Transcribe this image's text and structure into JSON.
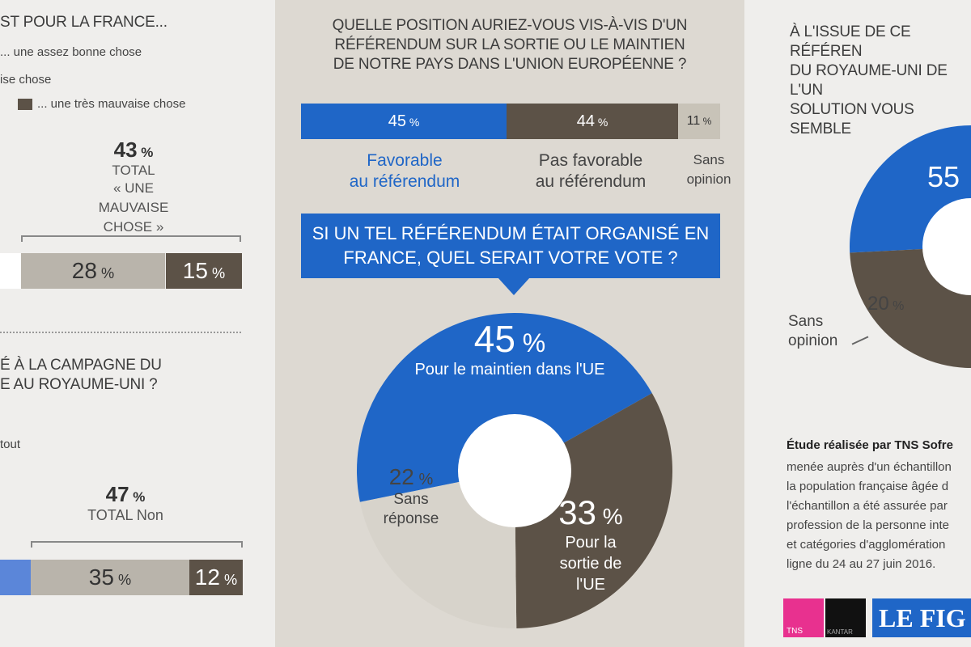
{
  "left_top": {
    "title_fragment": "ST POUR LA FRANCE...",
    "legend": [
      "... une assez bonne chose",
      "ise chose",
      "... une très mauvaise chose"
    ],
    "total_pct": "43",
    "total_label": "TOTAL",
    "total_sublabel": "« UNE MAUVAISE CHOSE »",
    "bar": [
      {
        "label": "28",
        "value": 28
      },
      {
        "label": "15",
        "value": 15
      }
    ]
  },
  "left_bottom": {
    "title_lines": [
      "É À LA CAMPAGNE DU",
      "E AU ROYAUME-UNI ?"
    ],
    "legend_fragment": "tout",
    "total_pct": "47",
    "total_label": "TOTAL Non",
    "bar": [
      {
        "label": "35",
        "value": 35
      },
      {
        "label": "12",
        "value": 12
      }
    ]
  },
  "center": {
    "question_lines": [
      "QUELLE POSITION AURIEZ-VOUS VIS-À-VIS D'UN",
      "RÉFÉRENDUM SUR LA SORTIE OU LE MAINTIEN",
      "DE NOTRE PAYS DANS L'UNION EUROPÉENNE ?"
    ],
    "bar": [
      {
        "label": "45",
        "value": 45,
        "caption": [
          "Favorable",
          "au référendum"
        ]
      },
      {
        "label": "44",
        "value": 44,
        "caption": [
          "Pas favorable",
          "au référendum"
        ]
      },
      {
        "label": "11",
        "value": 11,
        "caption": [
          "Sans",
          "opinion"
        ]
      }
    ],
    "callout_lines": [
      "SI UN TEL RÉFÉRENDUM ÉTAIT ORGANISÉ EN",
      "FRANCE, QUEL SERAIT VOTRE VOTE ?"
    ],
    "donut": [
      {
        "label": "45",
        "value": 45,
        "caption": "Pour le maintien dans l'UE",
        "color": "#1f66c7"
      },
      {
        "label": "33",
        "value": 33,
        "caption": "Pour la sortie de l'UE",
        "color": "#5c5247"
      },
      {
        "label": "22",
        "value": 22,
        "caption": "Sans réponse",
        "color": "#d7d3cb"
      }
    ]
  },
  "right": {
    "title_lines": [
      "À L'ISSUE DE CE RÉFÉREN",
      "DU ROYAUME-UNI DE L'UN",
      "SOLUTION VOUS SEMBLE"
    ],
    "donut_visible": [
      {
        "label": "55",
        "value": 55
      },
      {
        "label": "20",
        "value": 20,
        "caption": "Sans opinion"
      }
    ],
    "source_title": "Étude réalisée par TNS Sofre",
    "source_lines": [
      "menée auprès d'un échantillon",
      "la population française âgée d",
      "l'échantillon a été assurée par",
      "profession de la personne inte",
      "et catégories d'agglomération",
      "ligne du 24 au 27 juin 2016."
    ],
    "logos": {
      "tns": "TNS",
      "kantar": "KANTAR",
      "figaro": "LE FIG"
    }
  },
  "pct_sign": "%",
  "chart_data": [
    {
      "type": "bar",
      "title": "QUELLE POSITION AURIEZ-VOUS VIS-À-VIS D'UN RÉFÉRENDUM SUR LA SORTIE OU LE MAINTIEN DE NOTRE PAYS DANS L'UNION EUROPÉENNE ?",
      "categories": [
        "Favorable au référendum",
        "Pas favorable au référendum",
        "Sans opinion"
      ],
      "values": [
        45,
        44,
        11
      ]
    },
    {
      "type": "pie",
      "title": "SI UN TEL RÉFÉRENDUM ÉTAIT ORGANISÉ EN FRANCE, QUEL SERAIT VOTRE VOTE ?",
      "categories": [
        "Pour le maintien dans l'UE",
        "Pour la sortie de l'UE",
        "Sans réponse"
      ],
      "values": [
        45,
        33,
        22
      ]
    }
  ]
}
